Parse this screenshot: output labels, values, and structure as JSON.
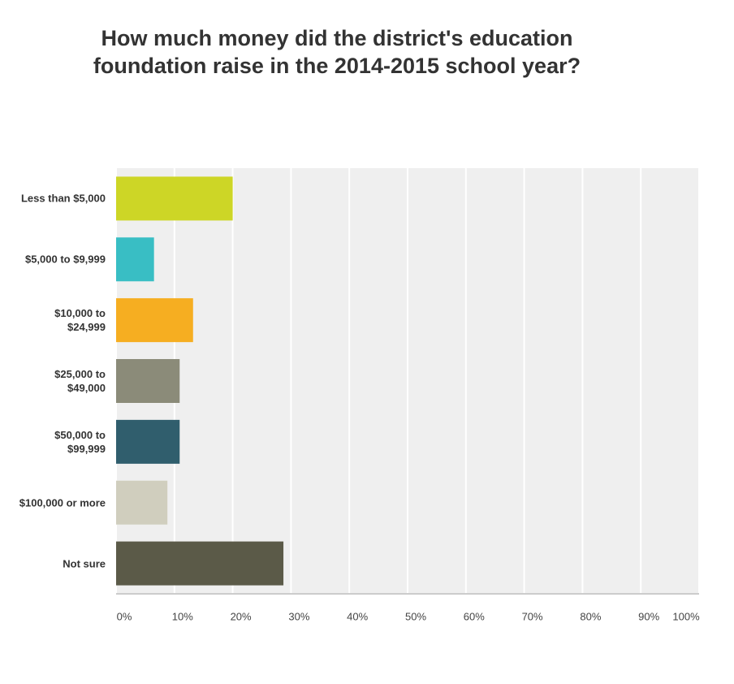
{
  "chart_data": {
    "type": "hbar",
    "title": "How much money did the district's education foundation raise in the 2014-2015 school year?",
    "categories": [
      "Less than $5,000",
      "$5,000 to $9,999",
      "$10,000 to $24,999",
      "$25,000 to $49,000",
      "$50,000 to $99,999",
      "$100,000 or more",
      "Not sure"
    ],
    "values": [
      20,
      6.5,
      13.2,
      10.9,
      10.9,
      8.8,
      28.7
    ],
    "colors": [
      "#cdd626",
      "#39bec4",
      "#f6ae21",
      "#8b8b79",
      "#305e6d",
      "#d0cebe",
      "#5b5a48"
    ],
    "xlim": [
      0,
      100
    ],
    "xticks": [
      {
        "value": 0,
        "label": "0%"
      },
      {
        "value": 10,
        "label": "10%"
      },
      {
        "value": 20,
        "label": "20%"
      },
      {
        "value": 30,
        "label": "30%"
      },
      {
        "value": 40,
        "label": "40%"
      },
      {
        "value": 50,
        "label": "50%"
      },
      {
        "value": 60,
        "label": "60%"
      },
      {
        "value": 70,
        "label": "70%"
      },
      {
        "value": 80,
        "label": "80%"
      },
      {
        "value": 90,
        "label": "90%"
      },
      {
        "value": 100,
        "label": "100%"
      }
    ],
    "grid": true
  }
}
